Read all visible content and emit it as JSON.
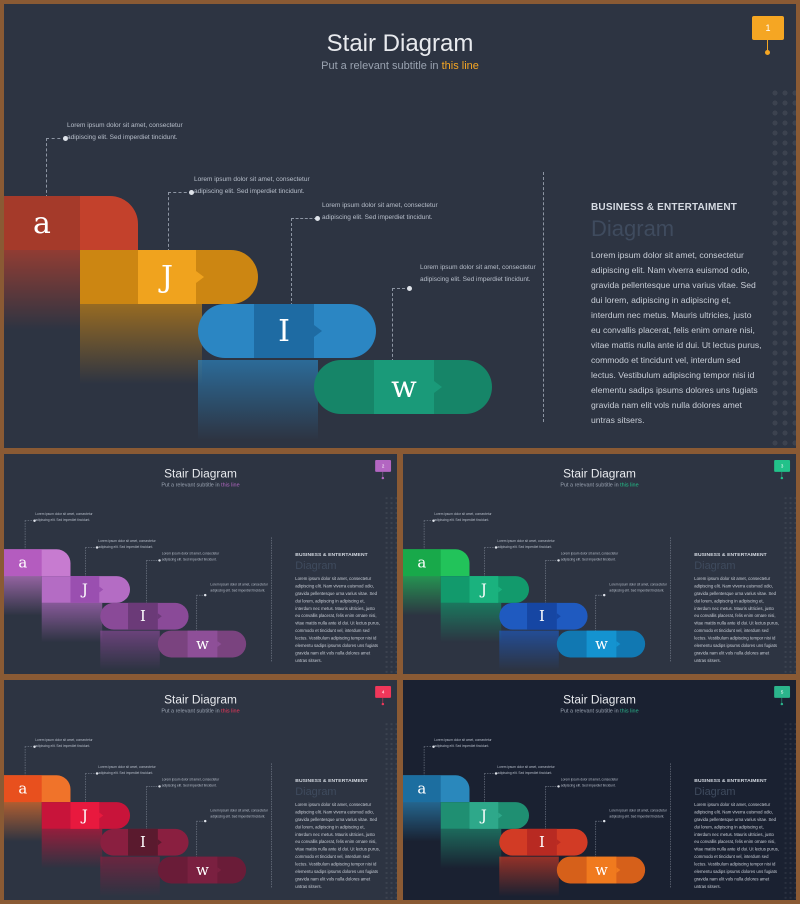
{
  "slides": [
    {
      "title": "Stair Diagram",
      "subtitle_prefix": "Put a relevant subtitle in ",
      "subtitle_highlight": "this line",
      "page_number": "1",
      "accent": "#f5a623",
      "steps": [
        {
          "letter": "a",
          "box_color": "#a53a2a",
          "bar_color": "#c3412c"
        },
        {
          "letter": "J",
          "box_color": "#f0a31e",
          "bar_color": "#cc8612"
        },
        {
          "letter": "I",
          "box_color": "#1e6ba3",
          "bar_color": "#2b86c3"
        },
        {
          "letter": "w",
          "box_color": "#1a9a79",
          "bar_color": "#168568"
        }
      ],
      "callouts": [
        "Lorem ipsum dolor sit amet, consectetur adipiscing elit. Sed imperdiet tincidunt.",
        "Lorem ipsum dolor sit amet, consectetur adipiscing elit. Sed imperdiet tincidunt.",
        "Lorem ipsum dolor sit amet, consectetur adipiscing elit. Sed imperdiet tincidunt.",
        "Lorem ipsum dolor sit amet, consectetur adipiscing elit. Sed imperdiet tincidunt."
      ],
      "side_heading": "BUSINESS & ENTERTAIMENT",
      "side_title": "Diagram",
      "side_body": "Lorem ipsum dolor sit amet, consectetur adipiscing elit. Nam viverra euismod odio, gravida pellentesque urna varius vitae. Sed dui lorem, adipiscing in adipiscing et, interdum nec metus. Mauris ultricies, justo eu convallis placerat, felis enim ornare nisi, vitae mattis nulla ante id dui. Ut lectus purus, commodo et tincidunt vel, interdum sed lectus. Vestibulum adipiscing tempor nisi id elementu sadips ipsums dolores uns fugiats gravida nam elit vols nulla dolores amet untras sitsers."
    },
    {
      "title": "Stair Diagram",
      "subtitle_prefix": "Put a relevant subtitle in ",
      "subtitle_highlight": "this line",
      "page_number": "2",
      "accent": "#b366c2",
      "steps": [
        {
          "letter": "a",
          "box_color": "#b45cbf",
          "bar_color": "#c77bd0"
        },
        {
          "letter": "J",
          "box_color": "#9a4fb0",
          "bar_color": "#b46cc4"
        },
        {
          "letter": "I",
          "box_color": "#6b3a78",
          "bar_color": "#8a4a98"
        },
        {
          "letter": "w",
          "box_color": "#8e4f98",
          "bar_color": "#7a437f"
        }
      ],
      "callouts": [
        "Lorem ipsum dolor sit amet, consectetur adipiscing elit. Sed imperdiet tincidunt.",
        "Lorem ipsum dolor sit amet, consectetur adipiscing elit. Sed imperdiet tincidunt.",
        "Lorem ipsum dolor sit amet, consectetur adipiscing elit. Sed imperdiet tincidunt.",
        "Lorem ipsum dolor sit amet, consectetur adipiscing elit. Sed imperdiet tincidunt."
      ],
      "side_heading": "BUSINESS & ENTERTAIMENT",
      "side_title": "Diagram",
      "side_body": "Lorem ipsum dolor sit amet, consectetur adipiscing elit. Nam viverra euismod odio, gravida pellentesque urna varius vitae. Sed dui lorem, adipiscing in adipiscing et, interdum nec metus. Mauris ultricies, justo eu convallis placerat, felis enim ornare nisi, vitae mattis nulla ante id dui. Ut lectus purus, commodo et tincidunt vel, interdum sed lectus. Vestibulum adipiscing tempor nisi id elementu sadips ipsums dolores uns fugiats gravida nam elit vols nulla dolores amet untras sitsers."
    },
    {
      "title": "Stair Diagram",
      "subtitle_prefix": "Put a relevant subtitle in ",
      "subtitle_highlight": "this line",
      "page_number": "3",
      "accent": "#22c28a",
      "steps": [
        {
          "letter": "a",
          "box_color": "#18a94a",
          "bar_color": "#22c35a"
        },
        {
          "letter": "J",
          "box_color": "#1ab27e",
          "bar_color": "#129a6c"
        },
        {
          "letter": "I",
          "box_color": "#1646a3",
          "bar_color": "#1f5ac0"
        },
        {
          "letter": "w",
          "box_color": "#1493d0",
          "bar_color": "#1178b2"
        }
      ],
      "callouts": [
        "Lorem ipsum dolor sit amet, consectetur adipiscing elit. Sed imperdiet tincidunt.",
        "Lorem ipsum dolor sit amet, consectetur adipiscing elit. Sed imperdiet tincidunt.",
        "Lorem ipsum dolor sit amet, consectetur adipiscing elit. Sed imperdiet tincidunt.",
        "Lorem ipsum dolor sit amet, consectetur adipiscing elit. Sed imperdiet tincidunt."
      ],
      "side_heading": "BUSINESS & ENTERTAIMENT",
      "side_title": "Diagram",
      "side_body": "Lorem ipsum dolor sit amet, consectetur adipiscing elit. Nam viverra euismod odio, gravida pellentesque urna varius vitae. Sed dui lorem, adipiscing in adipiscing et, interdum nec metus. Mauris ultricies, justo eu convallis placerat, felis enim ornare nisi, vitae mattis nulla ante id dui. Ut lectus purus, commodo et tincidunt vel, interdum sed lectus. Vestibulum adipiscing tempor nisi id elementu sadips ipsums dolores uns fugiats gravida nam elit vols nulla dolores amet untras sitsers."
    },
    {
      "title": "Stair Diagram",
      "subtitle_prefix": "Put a relevant subtitle in ",
      "subtitle_highlight": "this line",
      "page_number": "4",
      "accent": "#f0375a",
      "steps": [
        {
          "letter": "a",
          "box_color": "#e8501e",
          "bar_color": "#f0732a"
        },
        {
          "letter": "J",
          "box_color": "#e8193e",
          "bar_color": "#c8143a"
        },
        {
          "letter": "I",
          "box_color": "#5a1a2e",
          "bar_color": "#8a1f40"
        },
        {
          "letter": "w",
          "box_color": "#7a2040",
          "bar_color": "#6a1c38"
        }
      ],
      "callouts": [
        "Lorem ipsum dolor sit amet, consectetur adipiscing elit. Sed imperdiet tincidunt.",
        "Lorem ipsum dolor sit amet, consectetur adipiscing elit. Sed imperdiet tincidunt.",
        "Lorem ipsum dolor sit amet, consectetur adipiscing elit. Sed imperdiet tincidunt.",
        "Lorem ipsum dolor sit amet, consectetur adipiscing elit. Sed imperdiet tincidunt."
      ],
      "side_heading": "BUSINESS & ENTERTAIMENT",
      "side_title": "Diagram",
      "side_body": "Lorem ipsum dolor sit amet, consectetur adipiscing elit. Nam viverra euismod odio, gravida pellentesque urna varius vitae. Sed dui lorem, adipiscing in adipiscing et, interdum nec metus. Mauris ultricies, justo eu convallis placerat, felis enim ornare nisi, vitae mattis nulla ante id dui. Ut lectus purus, commodo et tincidunt vel, interdum sed lectus. Vestibulum adipiscing tempor nisi id elementu sadips ipsums dolores uns fugiats gravida nam elit vols nulla dolores amet untras sitsers."
    },
    {
      "title": "Stair Diagram",
      "subtitle_prefix": "Put a relevant subtitle in ",
      "subtitle_highlight": "this line",
      "page_number": "5",
      "accent": "#2bb58c",
      "steps": [
        {
          "letter": "a",
          "box_color": "#1c6ea0",
          "bar_color": "#2a88bc"
        },
        {
          "letter": "J",
          "box_color": "#2ea88a",
          "bar_color": "#1f8f72"
        },
        {
          "letter": "I",
          "box_color": "#b82a22",
          "bar_color": "#d23b25"
        },
        {
          "letter": "w",
          "box_color": "#f07a1e",
          "bar_color": "#d6601a"
        }
      ],
      "callouts": [
        "Lorem ipsum dolor sit amet, consectetur adipiscing elit. Sed imperdiet tincidunt.",
        "Lorem ipsum dolor sit amet, consectetur adipiscing elit. Sed imperdiet tincidunt.",
        "Lorem ipsum dolor sit amet, consectetur adipiscing elit. Sed imperdiet tincidunt.",
        "Lorem ipsum dolor sit amet, consectetur adipiscing elit. Sed imperdiet tincidunt."
      ],
      "side_heading": "BUSINESS & ENTERTAIMENT",
      "side_title": "Diagram",
      "side_body": "Lorem ipsum dolor sit amet, consectetur adipiscing elit. Nam viverra euismod odio, gravida pellentesque urna varius vitae. Sed dui lorem, adipiscing in adipiscing et, interdum nec metus. Mauris ultricies, justo eu convallis placerat, felis enim ornare nisi, vitae mattis nulla ante id dui. Ut lectus purus, commodo et tincidunt vel, interdum sed lectus. Vestibulum adipiscing tempor nisi id elementu sadips ipsums dolores uns fugiats gravida nam elit vols nulla dolores amet untras sitsers."
    }
  ]
}
